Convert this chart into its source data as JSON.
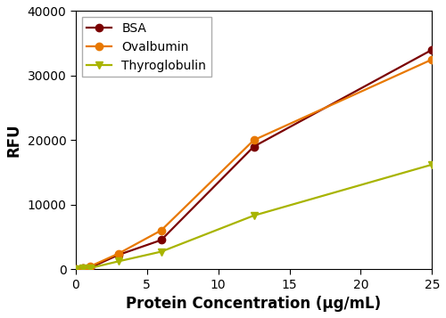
{
  "bsa_x": [
    0,
    0.5,
    1,
    3,
    6,
    12.5,
    25
  ],
  "bsa_y": [
    0,
    100,
    200,
    2200,
    4500,
    19000,
    34000
  ],
  "ovalbumin_x": [
    0,
    0.5,
    1,
    3,
    6,
    12.5,
    25
  ],
  "ovalbumin_y": [
    0,
    200,
    400,
    2400,
    6000,
    20000,
    32500
  ],
  "thyroglobulin_x": [
    0,
    0.5,
    1,
    3,
    6,
    12.5,
    25
  ],
  "thyroglobulin_y": [
    0,
    100,
    150,
    1200,
    2700,
    8300,
    16200
  ],
  "bsa_color": "#7B0000",
  "ovalbumin_color": "#E87800",
  "thyroglobulin_color": "#A8B400",
  "xlabel": "Protein Concentration (μg/mL)",
  "ylabel": "RFU",
  "ylim": [
    0,
    40000
  ],
  "xlim": [
    0,
    25
  ],
  "yticks": [
    0,
    10000,
    20000,
    30000,
    40000
  ],
  "xticks": [
    0,
    5,
    10,
    15,
    20,
    25
  ],
  "legend_labels": [
    "BSA",
    "Ovalbumin",
    "Thyroglobulin"
  ],
  "linewidth": 1.6,
  "markersize": 6,
  "xlabel_fontsize": 12,
  "ylabel_fontsize": 12,
  "tick_fontsize": 10,
  "legend_fontsize": 10
}
